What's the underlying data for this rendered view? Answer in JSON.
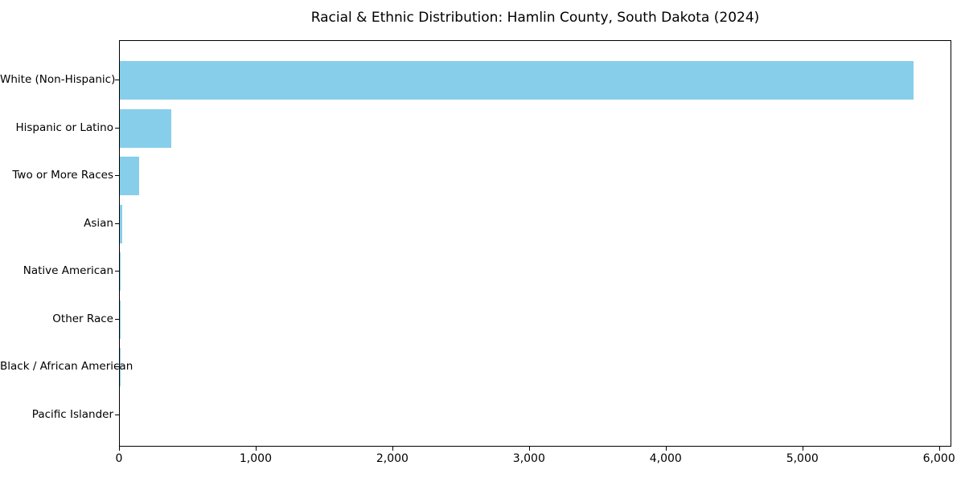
{
  "title": "Racial & Ethnic Distribution: Hamlin County, South Dakota (2024)",
  "colors": {
    "bar": "#87CEEB",
    "axis": "#000000",
    "text": "#000000",
    "background": "#FFFFFF"
  },
  "chart_data": {
    "type": "bar",
    "orientation": "horizontal",
    "title": "Racial & Ethnic Distribution: Hamlin County, South Dakota (2024)",
    "categories": [
      "White (Non-Hispanic)",
      "Hispanic or Latino",
      "Two or More Races",
      "Asian",
      "Native American",
      "Other Race",
      "Black / African American",
      "Pacific Islander"
    ],
    "values": [
      5810,
      375,
      140,
      20,
      8,
      6,
      4,
      0
    ],
    "xlabel": "",
    "ylabel": "",
    "xlim": [
      0,
      6090
    ],
    "x_ticks": [
      0,
      1000,
      2000,
      3000,
      4000,
      5000,
      6000
    ],
    "x_tick_labels": [
      "0",
      "1,000",
      "2,000",
      "3,000",
      "4,000",
      "5,000",
      "6,000"
    ],
    "bar_color": "#87CEEB",
    "legend": "none",
    "grid": false
  }
}
